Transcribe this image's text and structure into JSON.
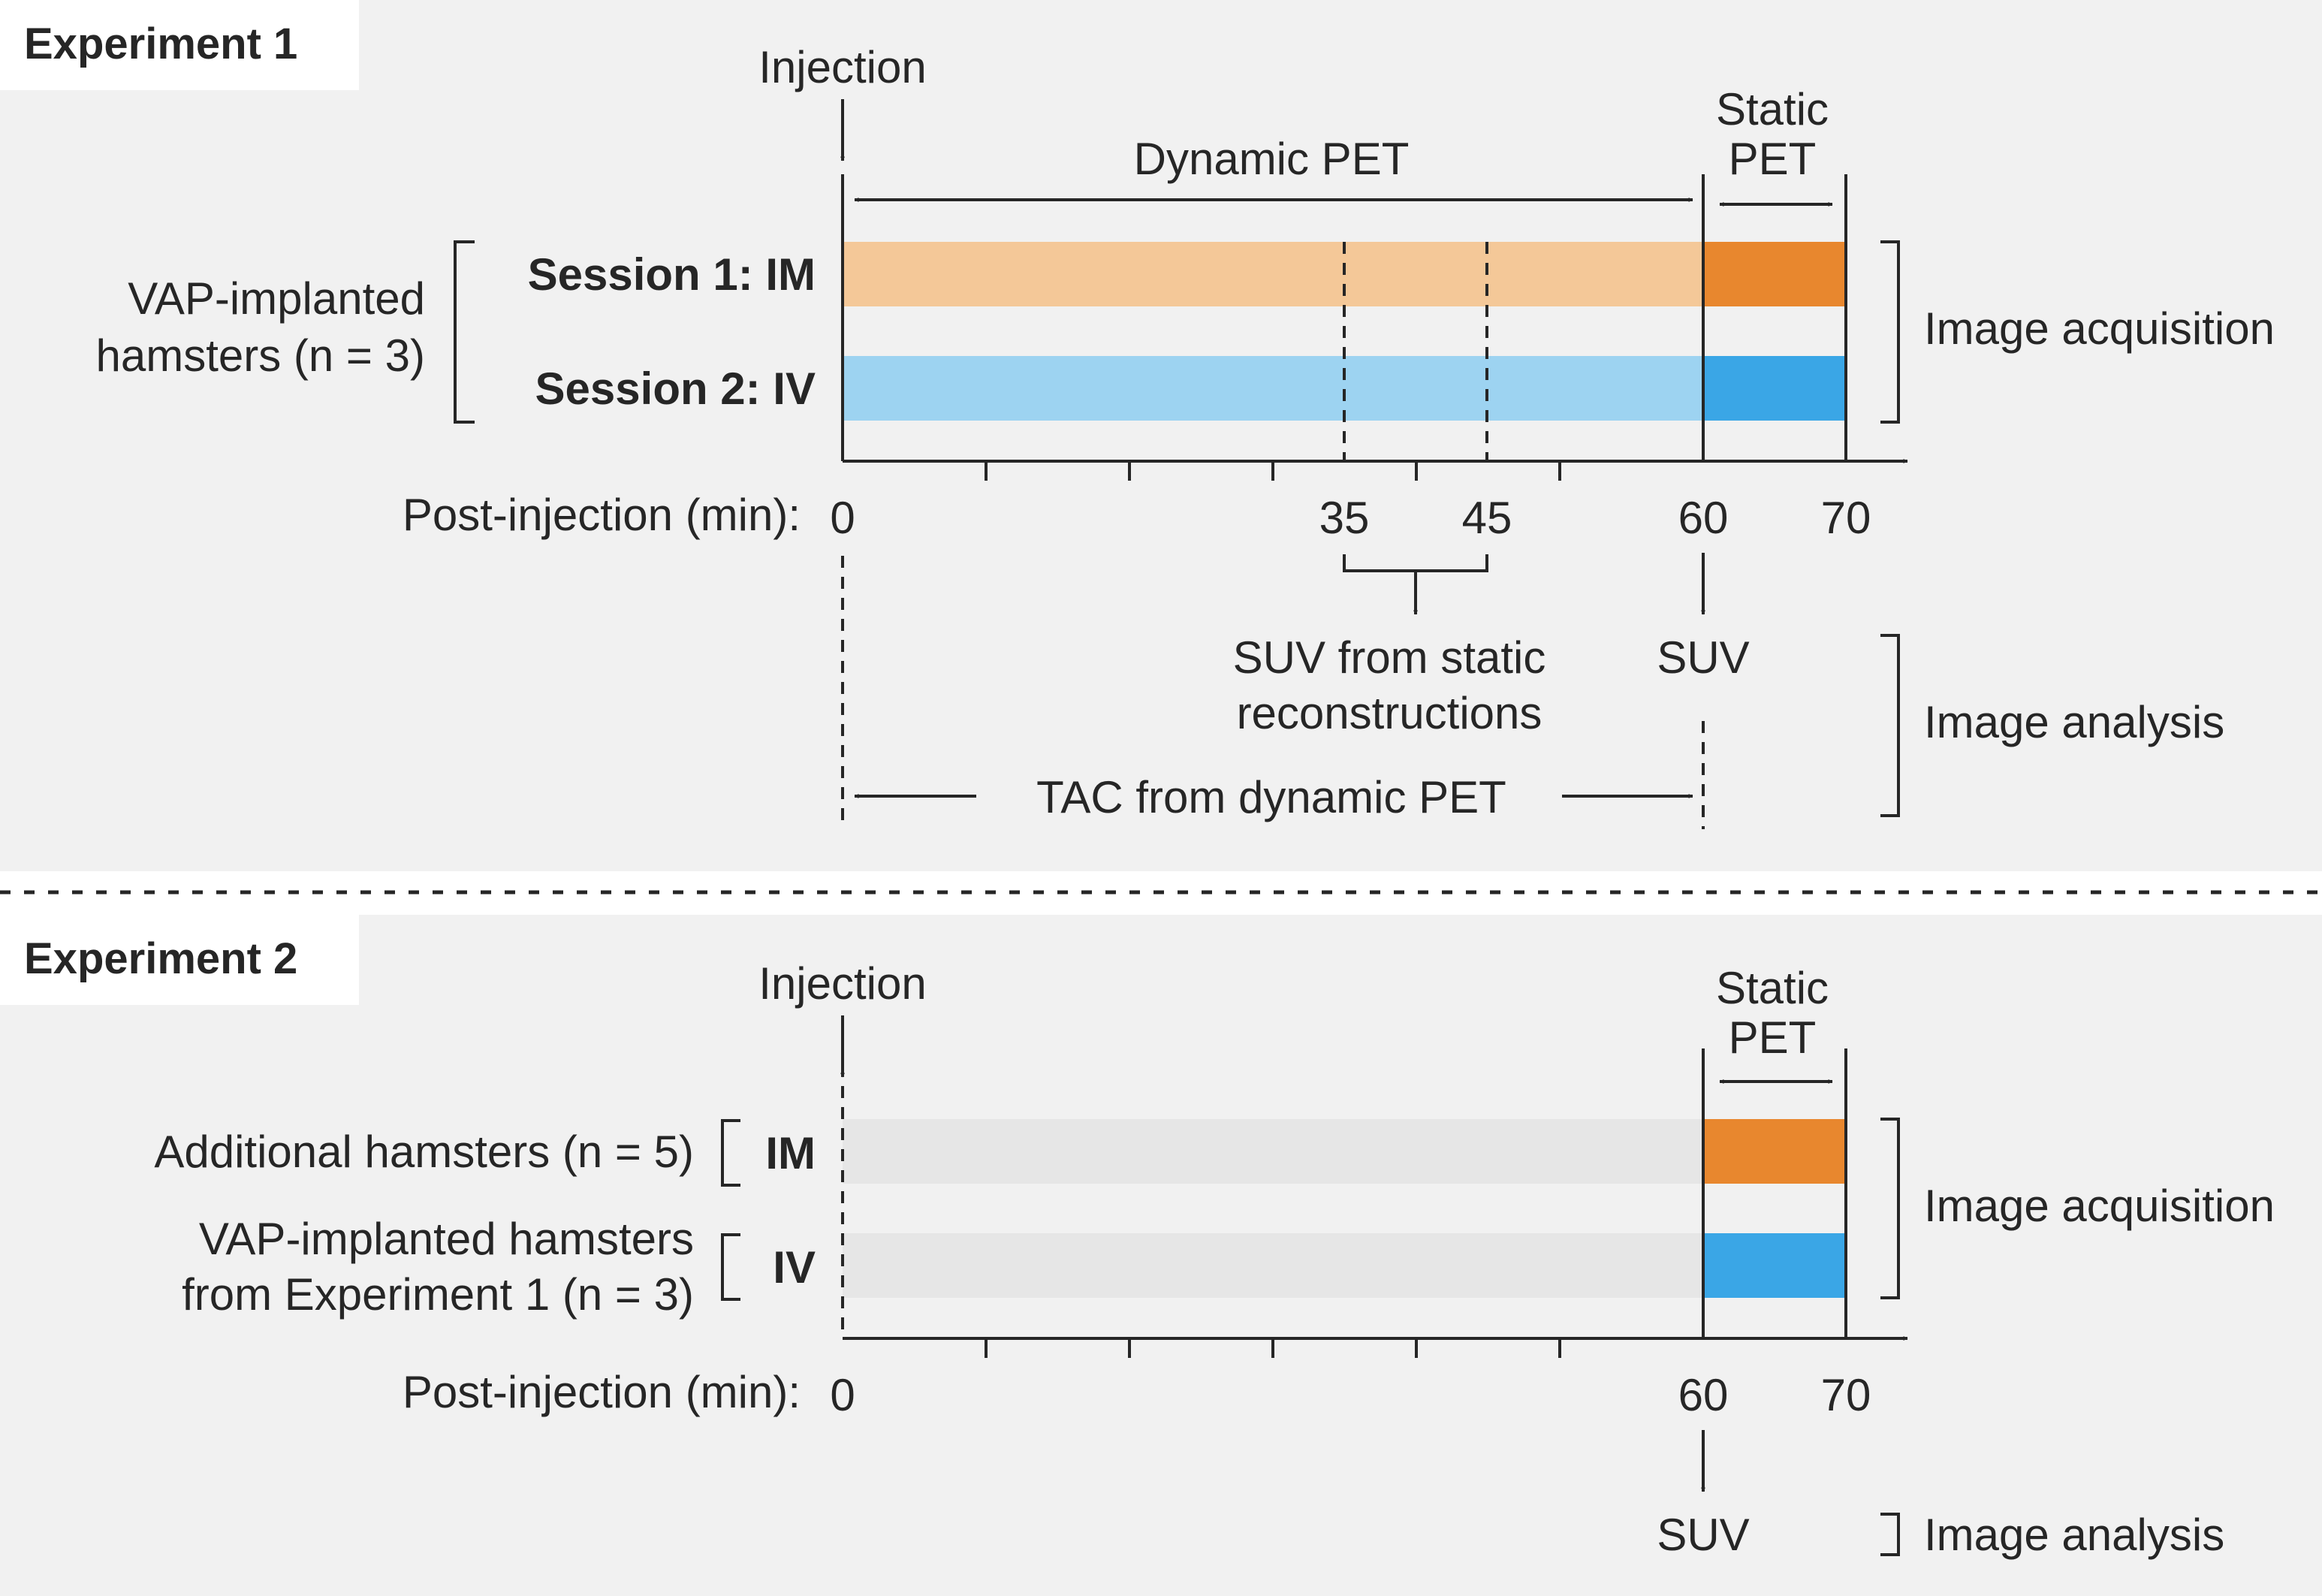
{
  "colors": {
    "im": "#E8872E",
    "im_light": "#F4C898",
    "iv": "#3AA6E6",
    "iv_light": "#9DD3F1",
    "gray_bar": "#E6E6E6",
    "panel_bg": "#F1F1F1",
    "ink": "#262626"
  },
  "experiment1": {
    "title": "Experiment 1",
    "injection_label": "Injection",
    "dynamic_label": "Dynamic PET",
    "static_label_line1": "Static",
    "static_label_line2": "PET",
    "group_line1": "VAP-implanted",
    "group_line2": "hamsters (n = 3)",
    "session1": "Session 1: IM",
    "session2": "Session 2: IV",
    "axis_label": "Post-injection (min):",
    "ticks": [
      "0",
      "35",
      "45",
      "60",
      "70"
    ],
    "suv_static_line1": "SUV from static",
    "suv_static_line2": "reconstructions",
    "suv": "SUV",
    "tac": "TAC from dynamic PET",
    "image_acquisition": "Image acquisition",
    "image_analysis": "Image analysis"
  },
  "experiment2": {
    "title": "Experiment 2",
    "injection_label": "Injection",
    "static_label_line1": "Static",
    "static_label_line2": "PET",
    "group1": "Additional hamsters (n = 5)",
    "group1_route": "IM",
    "group2_line1": "VAP-implanted hamsters",
    "group2_line2": "from Experiment 1 (n = 3)",
    "group2_route": "IV",
    "axis_label": "Post-injection (min):",
    "ticks": [
      "0",
      "60",
      "70"
    ],
    "suv": "SUV",
    "image_acquisition": "Image acquisition",
    "image_analysis": "Image analysis"
  }
}
